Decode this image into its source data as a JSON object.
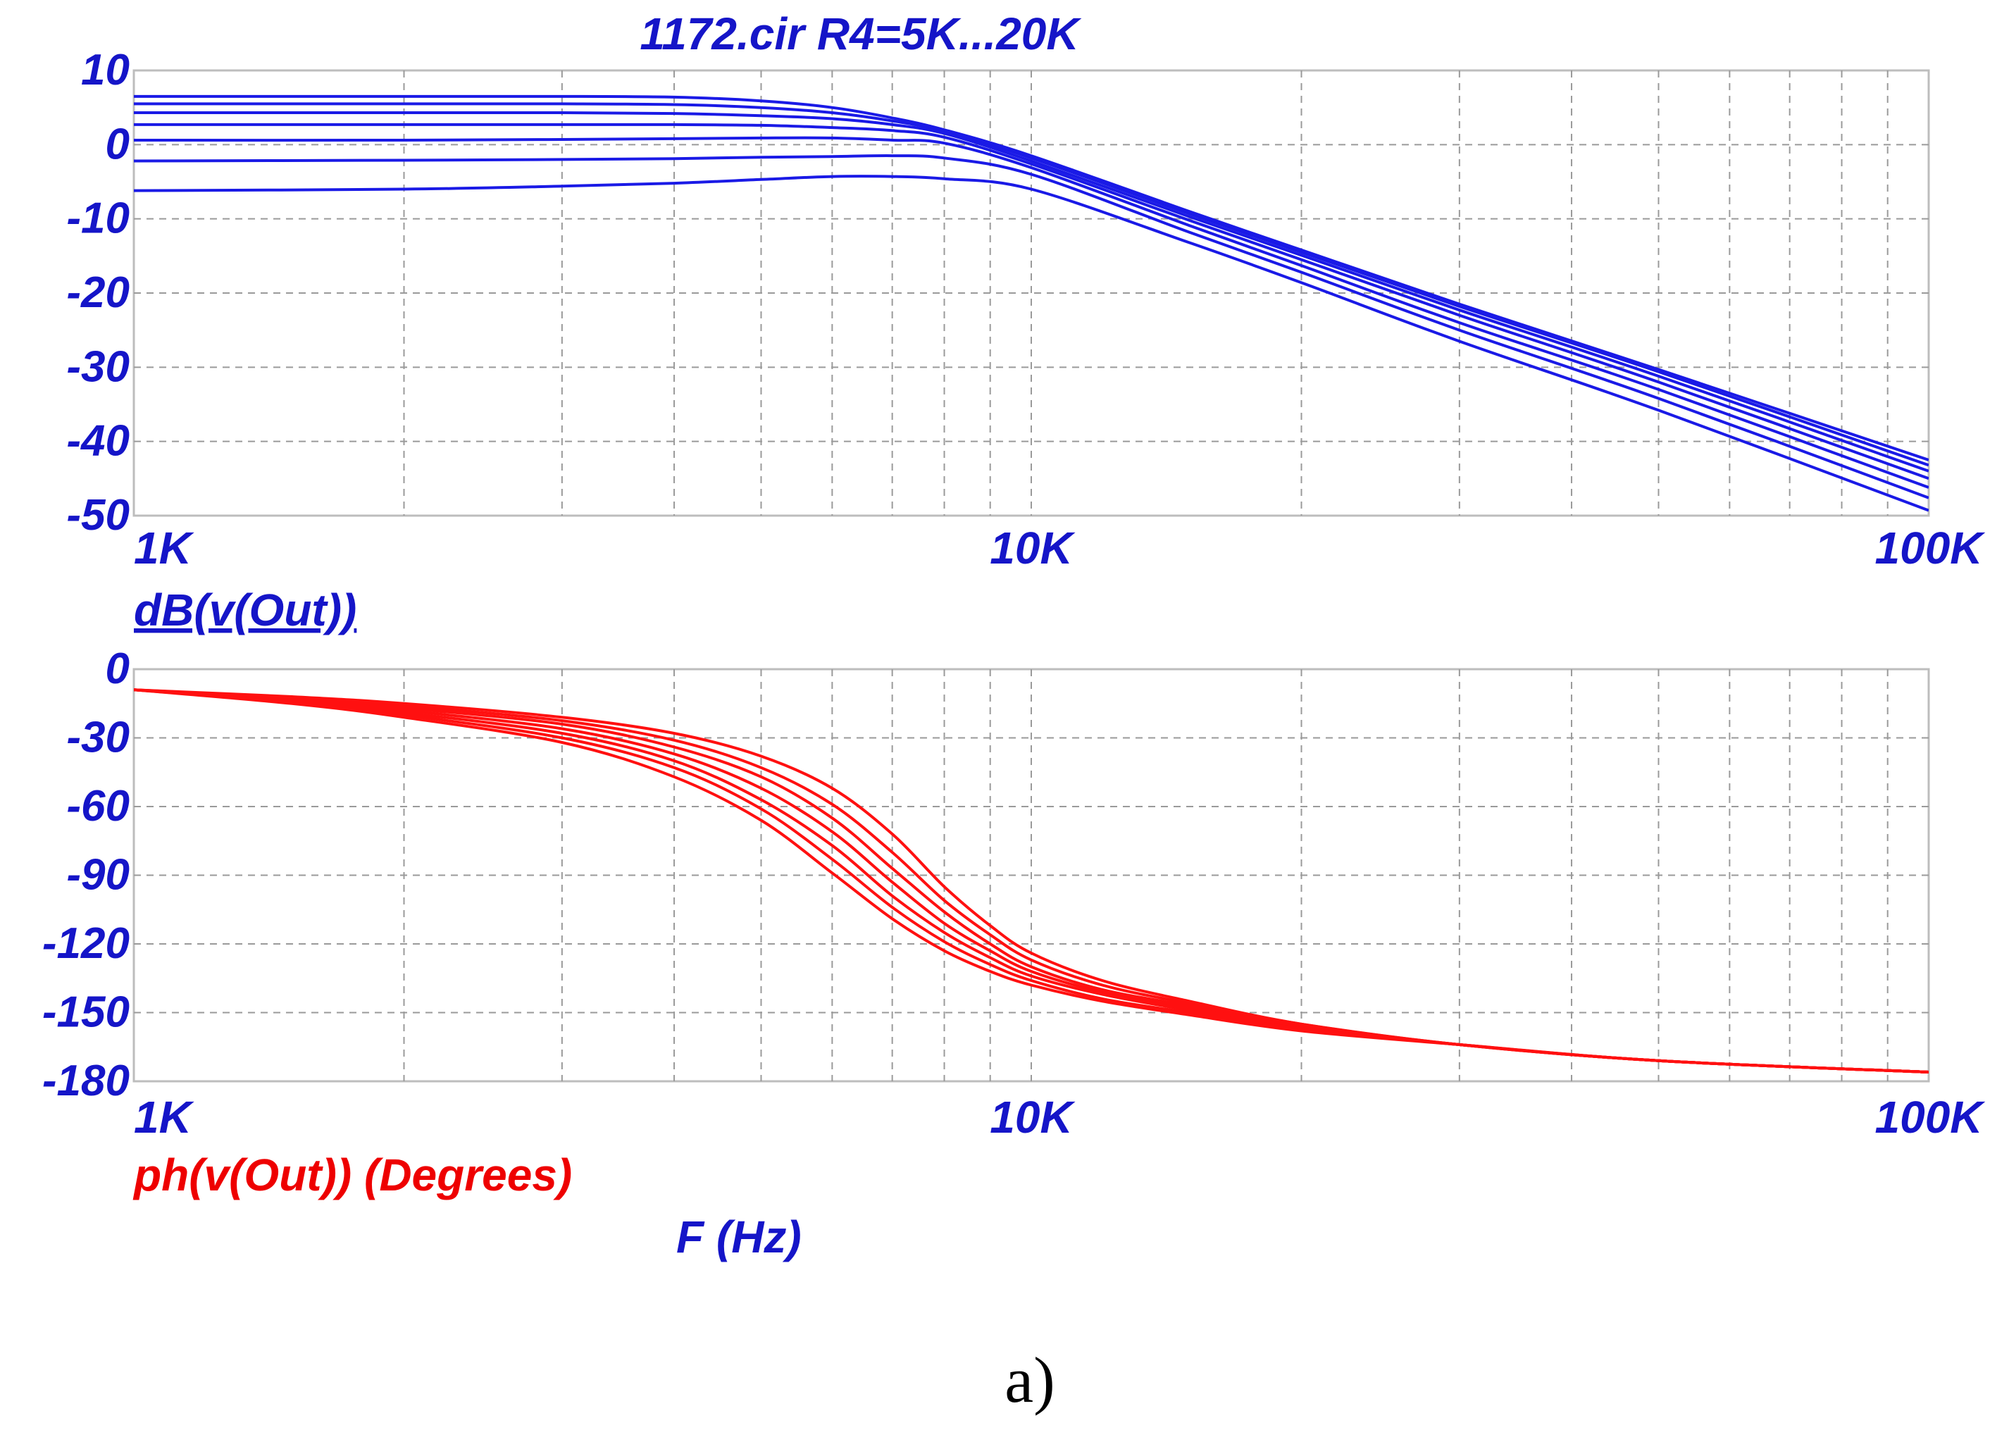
{
  "colors": {
    "magnitude": "#1a1ae6",
    "phase": "#ff1010",
    "label_blue": "#1515c8",
    "label_red": "#ee0000",
    "grid": "#9a9a9a",
    "frame": "#bdbdbd"
  },
  "figure_title": "1172.cir R4=5K...20K",
  "caption": "a)",
  "chart_data": [
    {
      "type": "line",
      "title": "1172.cir R4=5K...20K",
      "ylabel": "dB(v(Out))",
      "xscale": "log",
      "xlim": [
        1000,
        100000
      ],
      "ylim": [
        -50,
        10
      ],
      "xticks": [
        1000,
        10000,
        100000
      ],
      "xtick_labels": [
        "1K",
        "10K",
        "100K"
      ],
      "yticks": [
        10,
        0,
        -10,
        -20,
        -30,
        -40,
        -50
      ],
      "ytick_labels": [
        "10",
        "0",
        "-10",
        "-20",
        "-30",
        "-40",
        "-50"
      ],
      "grid": true,
      "x": [
        1000,
        2000,
        3000,
        4000,
        5000,
        6000,
        7000,
        8000,
        10000,
        15000,
        20000,
        30000,
        50000,
        100000
      ],
      "series": [
        {
          "values": [
            6.5,
            6.5,
            6.5,
            6.4,
            5.9,
            5.0,
            3.6,
            2.0,
            -1.5,
            -9.0,
            -14.2,
            -21.5,
            -30.3,
            -42.5
          ]
        },
        {
          "values": [
            5.5,
            5.5,
            5.5,
            5.4,
            5.0,
            4.3,
            3.2,
            1.8,
            -1.8,
            -9.3,
            -14.5,
            -21.8,
            -30.6,
            -43.2
          ]
        },
        {
          "values": [
            4.3,
            4.3,
            4.3,
            4.2,
            3.9,
            3.5,
            2.7,
            1.5,
            -2.2,
            -9.7,
            -14.9,
            -22.3,
            -31.2,
            -44.0
          ]
        },
        {
          "values": [
            2.7,
            2.7,
            2.7,
            2.7,
            2.6,
            2.3,
            1.9,
            1.0,
            -2.6,
            -10.2,
            -15.5,
            -23.0,
            -32.0,
            -45.0
          ]
        },
        {
          "values": [
            0.6,
            0.6,
            0.7,
            0.8,
            0.9,
            0.9,
            0.6,
            0.2,
            -3.1,
            -10.9,
            -16.3,
            -24.0,
            -33.0,
            -46.2
          ]
        },
        {
          "values": [
            -2.2,
            -2.1,
            -2.0,
            -1.9,
            -1.7,
            -1.6,
            -1.5,
            -1.8,
            -4.0,
            -11.8,
            -17.2,
            -25.0,
            -34.2,
            -47.6
          ]
        },
        {
          "values": [
            -6.2,
            -6.0,
            -5.6,
            -5.2,
            -4.7,
            -4.3,
            -4.3,
            -4.6,
            -6.0,
            -13.2,
            -18.6,
            -26.5,
            -35.8,
            -49.3
          ]
        }
      ]
    },
    {
      "type": "line",
      "ylabel": "ph(v(Out)) (Degrees)",
      "xlabel": "F (Hz)",
      "xscale": "log",
      "xlim": [
        1000,
        100000
      ],
      "ylim": [
        -180,
        0
      ],
      "xticks": [
        1000,
        10000,
        100000
      ],
      "xtick_labels": [
        "1K",
        "10K",
        "100K"
      ],
      "yticks": [
        0,
        -30,
        -60,
        -90,
        -120,
        -150,
        -180
      ],
      "ytick_labels": [
        "0",
        "-30",
        "-60",
        "-90",
        "-120",
        "-150",
        "-180"
      ],
      "grid": true,
      "x": [
        1000,
        1500,
        2000,
        3000,
        4000,
        5000,
        6000,
        7000,
        8000,
        9000,
        10000,
        12000,
        15000,
        20000,
        30000,
        50000,
        100000
      ],
      "series": [
        {
          "values": [
            -9,
            -12,
            -15,
            -21,
            -28,
            -38,
            -52,
            -72,
            -95,
            -112,
            -124,
            -136,
            -145,
            -155,
            -164,
            -171,
            -176
          ]
        },
        {
          "values": [
            -9,
            -12.5,
            -16,
            -22.5,
            -31,
            -43,
            -59,
            -80,
            -101,
            -116,
            -127,
            -138,
            -146,
            -155,
            -164,
            -171,
            -176
          ]
        },
        {
          "values": [
            -9,
            -13,
            -17,
            -24,
            -34,
            -47,
            -65,
            -87,
            -106,
            -120,
            -130,
            -140,
            -147,
            -156,
            -164,
            -171,
            -176
          ]
        },
        {
          "values": [
            -9,
            -13.5,
            -18,
            -26,
            -37,
            -52,
            -71,
            -93,
            -111,
            -123,
            -132,
            -141,
            -148,
            -156,
            -164,
            -171,
            -176
          ]
        },
        {
          "values": [
            -9,
            -14,
            -19,
            -28,
            -40,
            -57,
            -77,
            -99,
            -115,
            -126,
            -134,
            -142,
            -149,
            -157,
            -164,
            -171,
            -176
          ]
        },
        {
          "values": [
            -9,
            -14.5,
            -20,
            -30,
            -43,
            -61,
            -83,
            -104,
            -119,
            -129,
            -136,
            -144,
            -150,
            -157,
            -164,
            -171,
            -176
          ]
        },
        {
          "values": [
            -9,
            -15,
            -21,
            -32,
            -47,
            -66,
            -89,
            -109,
            -123,
            -132,
            -138,
            -145,
            -151,
            -158,
            -164,
            -171,
            -176
          ]
        }
      ]
    }
  ]
}
